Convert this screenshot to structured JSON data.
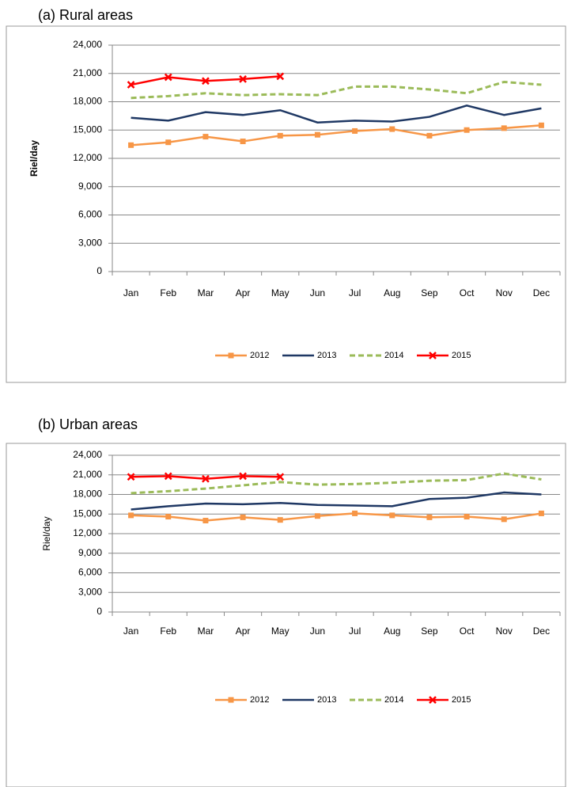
{
  "chart_data": [
    {
      "type": "line",
      "title": "(a)   Rural areas",
      "y_label": "Riel/day",
      "categories": [
        "Jan",
        "Feb",
        "Mar",
        "Apr",
        "May",
        "Jun",
        "Jul",
        "Aug",
        "Sep",
        "Oct",
        "Nov",
        "Dec"
      ],
      "ylim": [
        0,
        24000
      ],
      "yticks": [
        0,
        {
          "value": 3000,
          "label": "3,000"
        },
        {
          "value": 6000,
          "label": "6,000"
        },
        {
          "value": 9000,
          "label": "9,000"
        },
        {
          "value": 12000,
          "label": "12,000"
        },
        {
          "value": 15000,
          "label": "15,000"
        },
        {
          "value": 18000,
          "label": "18,000"
        },
        {
          "value": 21000,
          "label": "21,000"
        },
        {
          "value": 24000,
          "label": "24,000"
        }
      ],
      "grid": true,
      "series": [
        {
          "name": "2012",
          "color": "#f79646",
          "marker": "square",
          "values": [
            13400,
            13700,
            14300,
            13800,
            14400,
            14500,
            14900,
            15100,
            14400,
            15000,
            15200,
            15500
          ]
        },
        {
          "name": "2013",
          "color": "#1f3864",
          "values": [
            16300,
            16000,
            16900,
            16600,
            17100,
            15800,
            16000,
            15900,
            16400,
            17600,
            16600,
            17300
          ]
        },
        {
          "name": "2014",
          "color": "#9bbb59",
          "dashed": true,
          "values": [
            18400,
            18600,
            18900,
            18700,
            18800,
            18700,
            19600,
            19600,
            19300,
            18900,
            20100,
            19800
          ]
        },
        {
          "name": "2015",
          "color": "#ff0000",
          "marker": "x",
          "values": [
            19800,
            20600,
            20200,
            20400,
            20700,
            null,
            null,
            null,
            null,
            null,
            null,
            null
          ]
        }
      ]
    },
    {
      "type": "line",
      "title": "(b)   Urban areas",
      "y_label": "Riel/day",
      "categories": [
        "Jan",
        "Feb",
        "Mar",
        "Apr",
        "May",
        "Jun",
        "Jul",
        "Aug",
        "Sep",
        "Oct",
        "Nov",
        "Dec"
      ],
      "ylim": [
        0,
        24000
      ],
      "yticks": [
        0,
        {
          "value": 3000,
          "label": "3,000"
        },
        {
          "value": 6000,
          "label": "6,000"
        },
        {
          "value": 9000,
          "label": "9,000"
        },
        {
          "value": 12000,
          "label": "12,000"
        },
        {
          "value": 15000,
          "label": "15,000"
        },
        {
          "value": 18000,
          "label": "18,000"
        },
        {
          "value": 21000,
          "label": "21,000"
        },
        {
          "value": 24000,
          "label": "24,000"
        }
      ],
      "grid": true,
      "series": [
        {
          "name": "2012",
          "color": "#f79646",
          "marker": "square",
          "values": [
            14800,
            14600,
            14000,
            14500,
            14100,
            14700,
            15100,
            14800,
            14500,
            14600,
            14200,
            15100
          ]
        },
        {
          "name": "2013",
          "color": "#1f3864",
          "values": [
            15700,
            16200,
            16600,
            16500,
            16700,
            16400,
            16300,
            16200,
            17300,
            17500,
            18300,
            18000
          ]
        },
        {
          "name": "2014",
          "color": "#9bbb59",
          "dashed": true,
          "values": [
            18200,
            18500,
            18900,
            19400,
            19900,
            19500,
            19600,
            19800,
            20100,
            20200,
            21200,
            20300
          ]
        },
        {
          "name": "2015",
          "color": "#ff0000",
          "marker": "x",
          "values": [
            20700,
            20800,
            20400,
            20800,
            20700,
            null,
            null,
            null,
            null,
            null,
            null,
            null
          ]
        }
      ]
    }
  ]
}
